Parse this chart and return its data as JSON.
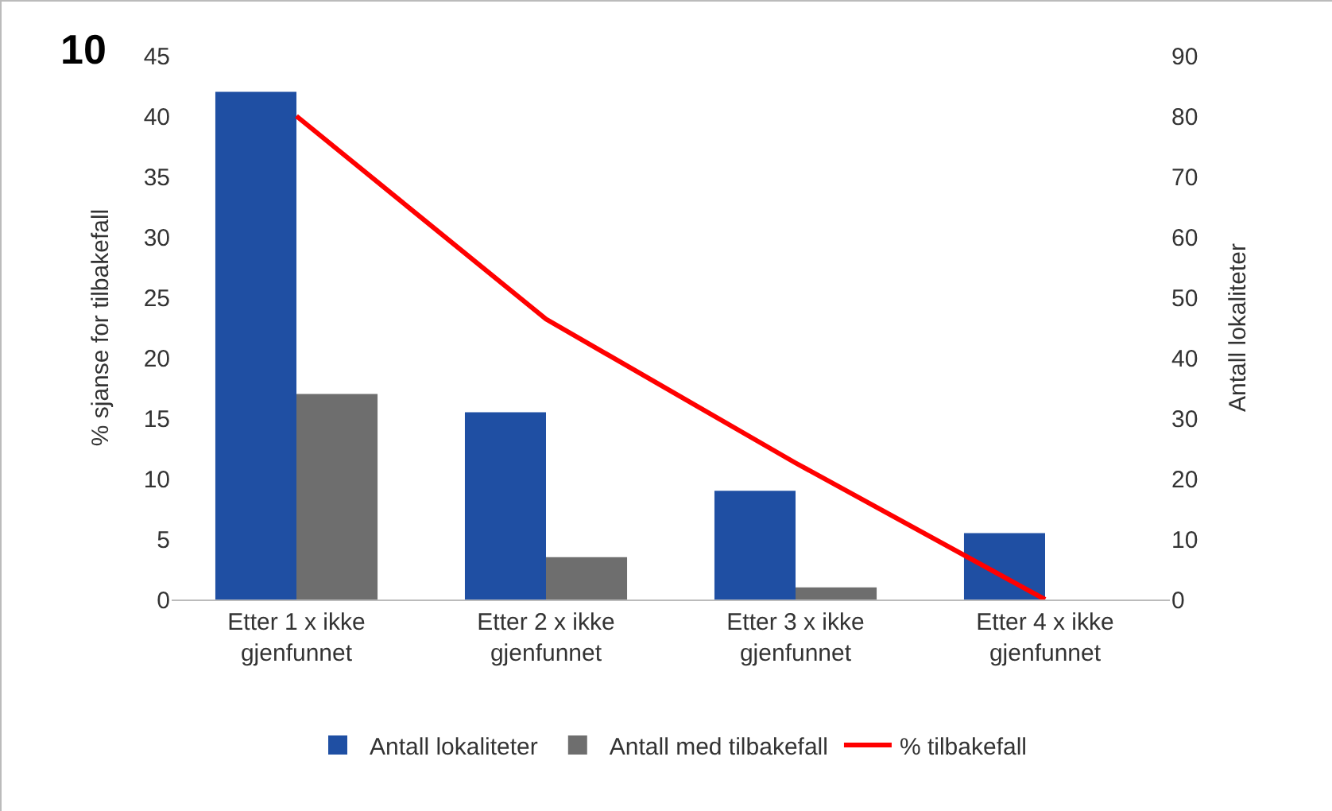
{
  "chart_data": {
    "type": "bar",
    "categories": [
      "Etter 1 x ikke gjenfunnet",
      "Etter 2 x ikke gjenfunnet",
      "Etter 3 x ikke gjenfunnet",
      "Etter 4 x ikke gjenfunnet"
    ],
    "ylabel": "% sjanse for tilbakefall",
    "y2label": "Antall lokaliteter",
    "ylim": [
      0,
      45
    ],
    "yticks": [
      0,
      5,
      10,
      15,
      20,
      25,
      30,
      35,
      40,
      45
    ],
    "y2lim": [
      0,
      90
    ],
    "y2ticks": [
      0,
      10,
      20,
      30,
      40,
      50,
      60,
      70,
      80,
      90
    ],
    "series": [
      {
        "name": "Antall lokaliteter",
        "color": "#1f4fa3",
        "values": [
          84,
          31,
          18,
          11
        ],
        "axis": "y2"
      },
      {
        "name": "Antall med tilbakefall",
        "color": "#6e6e6e",
        "values": [
          34,
          7,
          2,
          0
        ],
        "axis": "y2"
      },
      {
        "name": "% tilbakefall",
        "type": "line",
        "color": "#ff0000",
        "values": [
          40,
          23.2,
          11.3,
          0
        ],
        "marker": "none"
      }
    ],
    "grid": false,
    "legend": "bottom",
    "annotations": [
      "10"
    ]
  }
}
